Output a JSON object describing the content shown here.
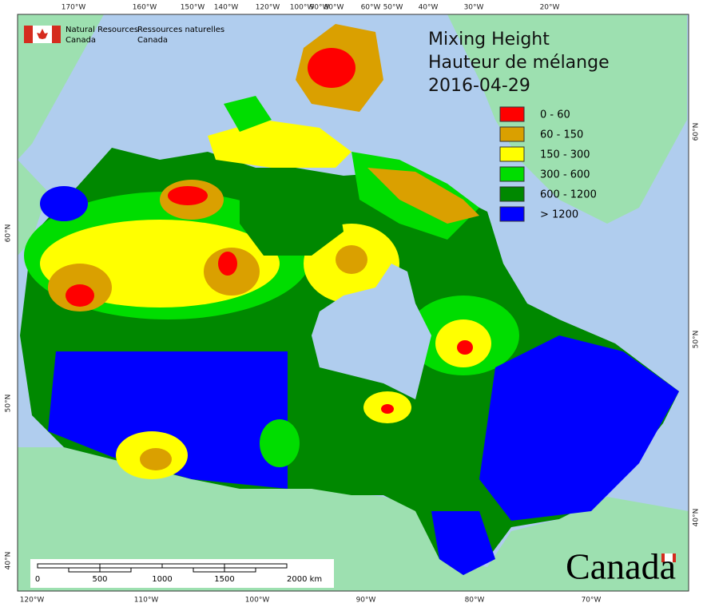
{
  "header": {
    "agency_en": [
      "Natural Resources",
      "Canada"
    ],
    "agency_fr": [
      "Ressources naturelles",
      "Canada"
    ]
  },
  "title": [
    "Mixing Height",
    "Hauteur de mélange",
    "2016-04-29"
  ],
  "legend": [
    {
      "label": "0 - 60",
      "color": "#ff0000"
    },
    {
      "label": "60 - 150",
      "color": "#daa000"
    },
    {
      "label": "150 - 300",
      "color": "#ffff00"
    },
    {
      "label": "300 - 600",
      "color": "#00dd00"
    },
    {
      "label": "600 - 1200",
      "color": "#008800"
    },
    {
      "label": "> 1200",
      "color": "#0000ff"
    }
  ],
  "graticule": {
    "top": [
      "170°W",
      "160°W",
      "150°W",
      "140°W",
      "120°W",
      "100°W",
      "90°W",
      "80°W",
      "60°W",
      "50°W",
      "40°W",
      "30°W",
      "20°W"
    ],
    "bottom": [
      "120°W",
      "110°W",
      "100°W",
      "90°W",
      "80°W",
      "70°W"
    ],
    "left": [
      "60°N",
      "50°N",
      "40°N"
    ],
    "right": [
      "60°N",
      "50°N",
      "40°N"
    ]
  },
  "scale_bar": [
    "0",
    "500",
    "1000",
    "1500",
    "2000 km"
  ],
  "wordmark": "Canada"
}
